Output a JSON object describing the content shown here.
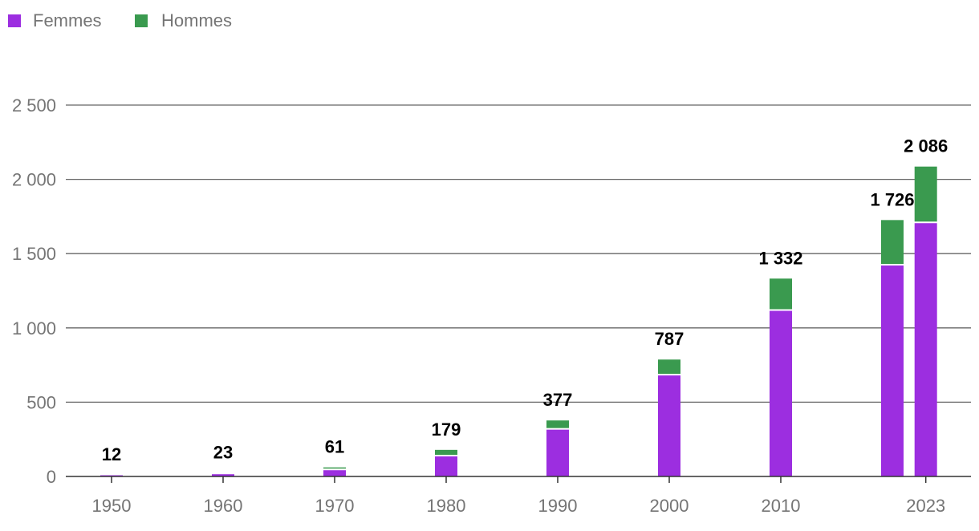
{
  "chart_data": {
    "type": "bar",
    "stacked": true,
    "legend_position": "top-left",
    "grid": true,
    "title": "",
    "xlabel": "",
    "ylabel": "",
    "ylim": [
      0,
      2500
    ],
    "y_ticks": [
      "0",
      "500",
      "1 000",
      "1 500",
      "2 000",
      "2 500"
    ],
    "y_tick_values": [
      0,
      500,
      1000,
      1500,
      2000,
      2500
    ],
    "x_ticks": [
      "1950",
      "1960",
      "1970",
      "1980",
      "1990",
      "2000",
      "2010",
      "2023"
    ],
    "x_tick_values": [
      1950,
      1960,
      1970,
      1980,
      1990,
      2000,
      2010,
      2023
    ],
    "x": [
      1950,
      1960,
      1970,
      1980,
      1990,
      2000,
      2010,
      2020,
      2023
    ],
    "series": [
      {
        "name": "Femmes",
        "color": "#9c2ee0",
        "values": [
          8,
          15,
          42,
          135,
          315,
          680,
          1115,
          1420,
          1705
        ]
      },
      {
        "name": "Hommes",
        "color": "#3a9a4f",
        "values": [
          4,
          8,
          19,
          44,
          62,
          107,
          217,
          306,
          381
        ]
      }
    ],
    "totals": [
      "12",
      "23",
      "61",
      "179",
      "377",
      "787",
      "1 332",
      "1 726",
      "2 086"
    ]
  }
}
